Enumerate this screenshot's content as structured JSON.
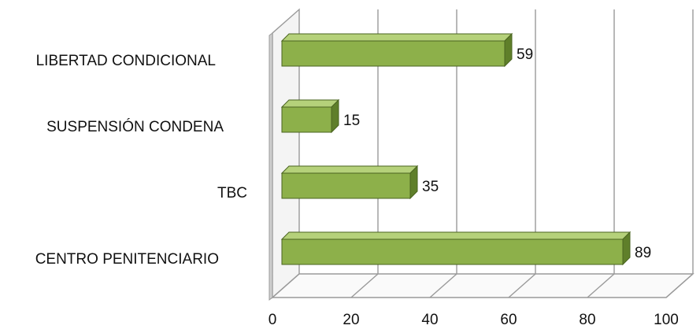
{
  "chart_data": {
    "type": "bar",
    "orientation": "horizontal",
    "style": "3d",
    "title": "",
    "xlabel": "",
    "ylabel": "",
    "categories": [
      "LIBERTAD CONDICIONAL",
      "SUSPENSIÓN CONDENA",
      "TBC",
      "CENTRO PENITENCIARIO"
    ],
    "values": [
      59,
      15,
      35,
      89
    ],
    "data_labels": [
      "59",
      "15",
      "35",
      "89"
    ],
    "xlim": [
      0,
      100
    ],
    "xticks": [
      0,
      20,
      40,
      60,
      80,
      100
    ],
    "xtick_labels": [
      "0",
      "20",
      "40",
      "60",
      "80",
      "100"
    ],
    "grid": true,
    "legend": "none",
    "colors": {
      "bar_front": "#8db04a",
      "bar_top": "#b5d17a",
      "bar_side": "#5f7f2a",
      "bar_edge": "#4a6420",
      "grid": "#9a9a9a",
      "wall": "#cfcfcf"
    }
  }
}
